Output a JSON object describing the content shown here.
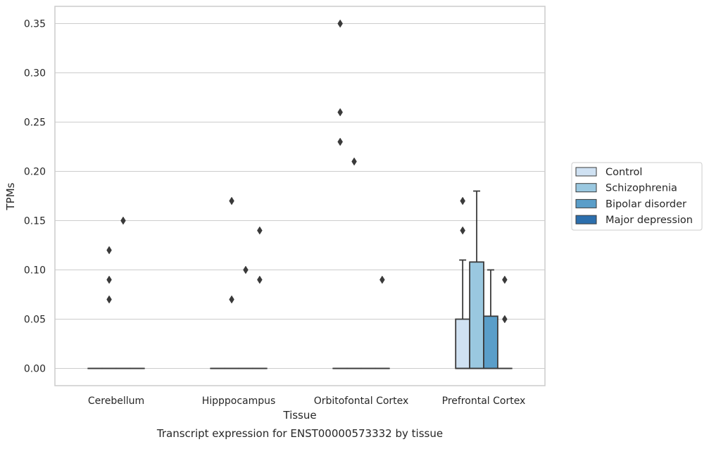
{
  "chart_data": {
    "type": "box",
    "xlabel": "Tissue",
    "ylabel": "TPMs",
    "caption": "Transcript expression for ENST00000573332 by tissue",
    "ylim": [
      -0.0175,
      0.3675
    ],
    "y_ticks": [
      "0.00",
      "0.05",
      "0.10",
      "0.15",
      "0.20",
      "0.25",
      "0.30",
      "0.35"
    ],
    "grid": "horizontal",
    "legend_position": "right",
    "categories": [
      "Cerebellum",
      "Hipppocampus",
      "Orbitofontal Cortex",
      "Prefrontal Cortex"
    ],
    "series": [
      {
        "name": "Control",
        "color": "#cfe1f2",
        "boxes": [
          {
            "q1": 0,
            "median": 0,
            "q3": 0,
            "whisker_low": 0,
            "whisker_high": 0,
            "outliers": []
          },
          {
            "q1": 0,
            "median": 0,
            "q3": 0,
            "whisker_low": 0,
            "whisker_high": 0,
            "outliers": []
          },
          {
            "q1": 0,
            "median": 0,
            "q3": 0,
            "whisker_low": 0,
            "whisker_high": 0,
            "outliers": [
              0.23,
              0.26,
              0.35
            ]
          },
          {
            "q1": 0,
            "median": 0,
            "q3": 0.05,
            "whisker_low": 0,
            "whisker_high": 0.11,
            "outliers": [
              0.14,
              0.17
            ]
          }
        ]
      },
      {
        "name": "Schizophrenia",
        "color": "#9ac8e0",
        "boxes": [
          {
            "q1": 0,
            "median": 0,
            "q3": 0,
            "whisker_low": 0,
            "whisker_high": 0,
            "outliers": [
              0.07,
              0.09,
              0.12
            ]
          },
          {
            "q1": 0,
            "median": 0,
            "q3": 0,
            "whisker_low": 0,
            "whisker_high": 0,
            "outliers": [
              0.07,
              0.17
            ]
          },
          {
            "q1": 0,
            "median": 0,
            "q3": 0,
            "whisker_low": 0,
            "whisker_high": 0,
            "outliers": [
              0.21
            ]
          },
          {
            "q1": 0,
            "median": 0,
            "q3": 0.108,
            "whisker_low": 0,
            "whisker_high": 0.18,
            "outliers": []
          }
        ]
      },
      {
        "name": "Bipolar disorder",
        "color": "#5a9ec9",
        "boxes": [
          {
            "q1": 0,
            "median": 0,
            "q3": 0,
            "whisker_low": 0,
            "whisker_high": 0,
            "outliers": [
              0.15
            ]
          },
          {
            "q1": 0,
            "median": 0,
            "q3": 0,
            "whisker_low": 0,
            "whisker_high": 0,
            "outliers": [
              0.1
            ]
          },
          {
            "q1": 0,
            "median": 0,
            "q3": 0,
            "whisker_low": 0,
            "whisker_high": 0,
            "outliers": []
          },
          {
            "q1": 0,
            "median": 0,
            "q3": 0.053,
            "whisker_low": 0,
            "whisker_high": 0.1,
            "outliers": []
          }
        ]
      },
      {
        "name": "Major depression",
        "color": "#2c6fad",
        "boxes": [
          {
            "q1": 0,
            "median": 0,
            "q3": 0,
            "whisker_low": 0,
            "whisker_high": 0,
            "outliers": []
          },
          {
            "q1": 0,
            "median": 0,
            "q3": 0,
            "whisker_low": 0,
            "whisker_high": 0,
            "outliers": [
              0.09,
              0.14
            ]
          },
          {
            "q1": 0,
            "median": 0,
            "q3": 0,
            "whisker_low": 0,
            "whisker_high": 0,
            "outliers": [
              0.09
            ]
          },
          {
            "q1": 0,
            "median": 0,
            "q3": 0,
            "whisker_low": 0,
            "whisker_high": 0,
            "outliers": [
              0.05,
              0.09
            ]
          }
        ]
      }
    ]
  }
}
